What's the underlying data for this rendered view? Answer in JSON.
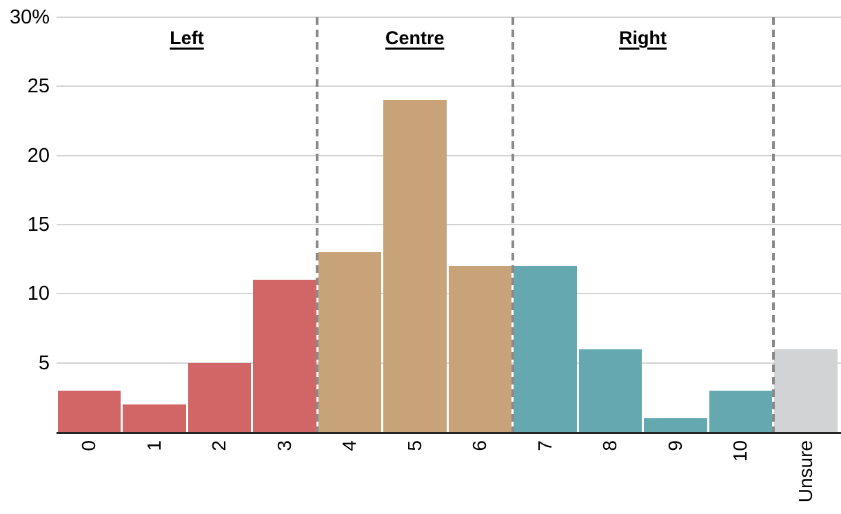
{
  "chart_data": {
    "type": "bar",
    "title": "",
    "xlabel": "",
    "ylabel": "",
    "unit": "%",
    "categories": [
      "0",
      "1",
      "2",
      "3",
      "4",
      "5",
      "6",
      "7",
      "8",
      "9",
      "10",
      "Unsure"
    ],
    "values": [
      3,
      2,
      5,
      11,
      13,
      24,
      12,
      12,
      6,
      1,
      3,
      6
    ],
    "ylim": [
      0,
      30
    ],
    "grid": "on",
    "legend": "none",
    "yticks": [
      {
        "value": 5,
        "label": "5"
      },
      {
        "value": 10,
        "label": "10"
      },
      {
        "value": 15,
        "label": "15"
      },
      {
        "value": 20,
        "label": "20"
      },
      {
        "value": 25,
        "label": "25"
      },
      {
        "value": 30,
        "label": "30%"
      }
    ],
    "sections": [
      {
        "label": "Left",
        "start_index": 0,
        "end_index": 3,
        "color": "#d26667"
      },
      {
        "label": "Centre",
        "start_index": 4,
        "end_index": 6,
        "color": "#c8a379"
      },
      {
        "label": "Right",
        "start_index": 7,
        "end_index": 10,
        "color": "#66a8b0"
      },
      {
        "label": "",
        "start_index": 11,
        "end_index": 11,
        "color": "#d2d3d4"
      }
    ],
    "separator_after_indices": [
      3,
      6,
      10
    ]
  },
  "colors": {
    "left_bar": "#d26667",
    "centre_bar": "#c8a379",
    "right_bar": "#66a8b0",
    "unsure_bar": "#d2d3d4",
    "gridline": "#d4d4d4",
    "axis": "#262626",
    "separator": "#8a8a8a",
    "text": "#000000"
  }
}
